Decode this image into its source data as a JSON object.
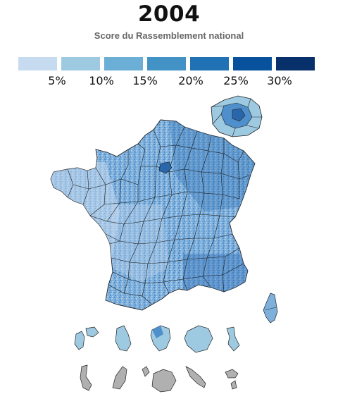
{
  "title": "2004",
  "subtitle": "Score du Rassemblement national",
  "legend": {
    "colors": [
      "#c6dbef",
      "#9ecae1",
      "#6baed6",
      "#4292c6",
      "#2171b5",
      "#08519c",
      "#08306b"
    ],
    "ticks": [
      "5%",
      "10%",
      "15%",
      "20%",
      "25%",
      "30%"
    ]
  },
  "map": {
    "metropole_fill": "#7fb0dc",
    "dark_fill": "#3f7fc0",
    "light_fill": "#c6dbef",
    "no_data_fill": "#b0b0b0",
    "border_color": "#222222"
  }
}
